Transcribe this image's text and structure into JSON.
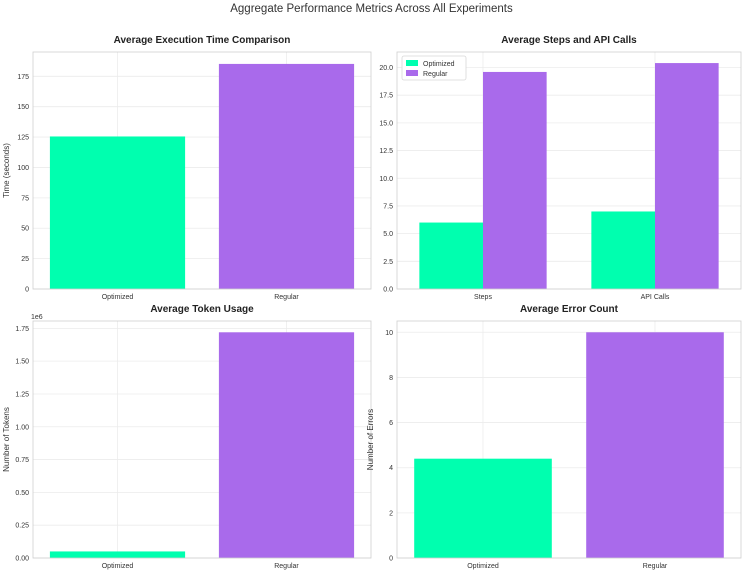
{
  "title": "Aggregate Performance Metrics Across All Experiments",
  "colors": {
    "optimized": "#00FFAF",
    "regular": "#A96AEB"
  },
  "chart_data": [
    {
      "type": "bar",
      "title": "Average Execution Time Comparison",
      "xlabel": "",
      "ylabel": "Time (seconds)",
      "categories": [
        "Optimized",
        "Regular"
      ],
      "values": [
        125.5,
        185.2
      ],
      "ylim": [
        0,
        195
      ],
      "yticks": [
        0,
        25,
        50,
        75,
        100,
        125,
        150,
        175
      ],
      "ytick_labels": [
        "0",
        "25",
        "50",
        "75",
        "100",
        "125",
        "150",
        "175"
      ],
      "grid": true
    },
    {
      "type": "bar",
      "title": "Average Steps and API Calls",
      "xlabel": "",
      "ylabel": "",
      "categories": [
        "Steps",
        "API Calls"
      ],
      "series": [
        {
          "name": "Optimized",
          "values": [
            6.0,
            7.0
          ]
        },
        {
          "name": "Regular",
          "values": [
            19.6,
            20.4
          ]
        }
      ],
      "ylim": [
        0,
        21.4
      ],
      "yticks": [
        0,
        2.5,
        5,
        7.5,
        10,
        12.5,
        15,
        17.5,
        20
      ],
      "ytick_labels": [
        "0.0",
        "2.5",
        "5.0",
        "7.5",
        "10.0",
        "12.5",
        "15.0",
        "17.5",
        "20.0"
      ],
      "legend": "top-left",
      "grid": true
    },
    {
      "type": "bar",
      "title": "Average Token Usage",
      "xlabel": "",
      "ylabel": "Number of Tokens",
      "categories": [
        "Optimized",
        "Regular"
      ],
      "values": [
        50000,
        1720000
      ],
      "ylim": [
        0,
        1806000
      ],
      "yticks": [
        0,
        250000,
        500000,
        750000,
        1000000,
        1250000,
        1500000,
        1750000
      ],
      "ytick_labels": [
        "0.00",
        "0.25",
        "0.50",
        "0.75",
        "1.00",
        "1.25",
        "1.50",
        "1.75"
      ],
      "offset_label": "1e6",
      "grid": true
    },
    {
      "type": "bar",
      "title": "Average Error Count",
      "xlabel": "",
      "ylabel": "Number of Errors",
      "categories": [
        "Optimized",
        "Regular"
      ],
      "values": [
        4.4,
        10.0
      ],
      "ylim": [
        0,
        10.5
      ],
      "yticks": [
        0,
        2,
        4,
        6,
        8,
        10
      ],
      "ytick_labels": [
        "0",
        "2",
        "4",
        "6",
        "8",
        "10"
      ],
      "grid": true
    }
  ]
}
